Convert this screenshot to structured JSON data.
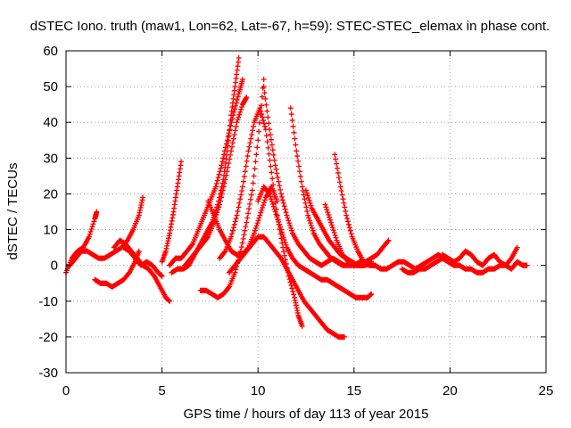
{
  "chart_data": {
    "type": "scatter",
    "title": "dSTEC Iono. truth (maw1, Lon=62, Lat=-67, h=59): STEC-STEC_elemax in phase cont.",
    "xlabel": "GPS time / hours of day 113 of year 2015",
    "ylabel": "dSTEC  / TECUs",
    "xlim": [
      0,
      25
    ],
    "ylim": [
      -30,
      60
    ],
    "xticks": [
      0,
      5,
      10,
      15,
      20,
      25
    ],
    "yticks": [
      -30,
      -20,
      -10,
      0,
      10,
      20,
      30,
      40,
      50,
      60
    ],
    "grid": true,
    "marker": "+",
    "colors": {
      "series": "#ff0000",
      "axes": "#000000",
      "grid": "#a0a0a0"
    },
    "series": [
      {
        "arcs": [
          {
            "x": [
              0.0,
              0.3,
              0.6,
              0.9,
              1.2,
              1.5,
              1.6
            ],
            "y": [
              -2,
              2,
              4,
              5,
              8,
              13,
              15
            ]
          },
          {
            "x": [
              0.2,
              0.5,
              0.8,
              1.1,
              1.4,
              1.7,
              2.0,
              2.3,
              2.6,
              2.9,
              3.2,
              3.5,
              3.8,
              4.0
            ],
            "y": [
              0,
              2,
              4,
              4,
              3,
              2,
              2,
              3,
              4,
              5,
              7,
              10,
              14,
              19
            ]
          },
          {
            "x": [
              1.5,
              1.8,
              2.1,
              2.4,
              2.7,
              3.0,
              3.3,
              3.6,
              3.8
            ],
            "y": [
              -4,
              -5,
              -5,
              -6,
              -5,
              -4,
              -2,
              1,
              4
            ]
          },
          {
            "x": [
              2.5,
              2.8,
              3.1,
              3.4,
              3.7,
              4.0,
              4.3,
              4.6,
              4.9,
              5.2,
              5.4
            ],
            "y": [
              5,
              7,
              6,
              4,
              2,
              0,
              -1,
              -3,
              -6,
              -9,
              -10
            ]
          },
          {
            "x": [
              3.0,
              3.3,
              3.6,
              3.9,
              4.2,
              4.5,
              4.8,
              5.0
            ],
            "y": [
              5,
              4,
              2,
              0,
              1,
              0,
              -2,
              -3
            ]
          },
          {
            "x": [
              5.0,
              5.2,
              5.4,
              5.6,
              5.8,
              6.0
            ],
            "y": [
              1,
              4,
              9,
              15,
              22,
              29
            ]
          },
          {
            "x": [
              5.4,
              5.7,
              6.0,
              6.3,
              6.6,
              6.9,
              7.2,
              7.5,
              7.8,
              8.1,
              8.4,
              8.7,
              9.0,
              9.2
            ],
            "y": [
              0,
              2,
              2,
              4,
              6,
              10,
              14,
              18,
              22,
              28,
              35,
              42,
              48,
              52
            ]
          },
          {
            "x": [
              5.5,
              5.8,
              6.1,
              6.4,
              6.7,
              7.0,
              7.3,
              7.6,
              7.9,
              8.2,
              8.4,
              8.6,
              8.8,
              9.0
            ],
            "y": [
              -2,
              -1,
              -1,
              0,
              3,
              6,
              9,
              12,
              17,
              24,
              32,
              42,
              50,
              58
            ]
          },
          {
            "x": [
              6.2,
              6.5,
              6.8,
              7.1,
              7.4,
              7.7,
              8.0,
              8.3,
              8.6,
              8.9,
              9.2,
              9.4
            ],
            "y": [
              0,
              2,
              4,
              6,
              8,
              12,
              17,
              24,
              32,
              40,
              45,
              47
            ]
          },
          {
            "x": [
              7.0,
              7.3,
              7.6,
              7.9,
              8.2,
              8.5,
              8.8,
              9.1,
              9.4,
              9.7,
              10.0,
              10.3
            ],
            "y": [
              -7,
              -7,
              -8,
              -9,
              -8,
              -6,
              -2,
              4,
              12,
              21,
              35,
              52
            ]
          },
          {
            "x": [
              7.4,
              7.7,
              8.0,
              8.3,
              8.6,
              8.9,
              9.2,
              9.5,
              9.8,
              10.1,
              10.4,
              10.7,
              11.0
            ],
            "y": [
              18,
              14,
              10,
              7,
              4,
              3,
              3,
              5,
              9,
              14,
              19,
              22,
              18
            ]
          },
          {
            "x": [
              8.0,
              8.3,
              8.6,
              8.9,
              9.2,
              9.5,
              9.8,
              10.1,
              10.4,
              10.7,
              11.0,
              11.3,
              11.6,
              11.9,
              12.1,
              12.3
            ],
            "y": [
              2,
              4,
              8,
              14,
              22,
              32,
              40,
              44,
              38,
              26,
              14,
              5,
              -3,
              -9,
              -14,
              -17
            ]
          },
          {
            "x": [
              8.5,
              8.8,
              9.1,
              9.4,
              9.7,
              10.0,
              10.3,
              10.6,
              10.9,
              11.2,
              11.5,
              11.8,
              12.1,
              12.4,
              12.7,
              13.0,
              13.3,
              13.6,
              13.9,
              14.2,
              14.5
            ],
            "y": [
              -2,
              0,
              2,
              4,
              6,
              8,
              8,
              6,
              4,
              2,
              -1,
              -4,
              -7,
              -10,
              -12,
              -14,
              -16,
              -18,
              -19,
              -20,
              -20
            ]
          },
          {
            "x": [
              10.0,
              10.3,
              10.6,
              10.9,
              11.2,
              11.5,
              11.8,
              12.1,
              12.4,
              12.7,
              13.0,
              13.3,
              13.6,
              13.9,
              14.2,
              14.5,
              14.8,
              15.1,
              15.4,
              15.7,
              15.9
            ],
            "y": [
              18,
              22,
              20,
              15,
              10,
              5,
              2,
              0,
              -1,
              -2,
              -3,
              -4,
              -4,
              -5,
              -6,
              -7,
              -8,
              -9,
              -9,
              -9,
              -8
            ]
          },
          {
            "x": [
              10.3,
              10.6,
              10.9,
              11.2,
              11.5,
              11.8,
              12.1,
              12.4,
              12.7,
              13.0,
              13.3,
              13.6,
              13.9,
              14.2,
              14.5
            ],
            "y": [
              50,
              38,
              28,
              20,
              14,
              9,
              6,
              4,
              2,
              1,
              0,
              1,
              2,
              1,
              0
            ]
          },
          {
            "x": [
              11.7,
              12.0,
              12.3,
              12.6,
              12.9,
              13.2,
              13.5,
              13.8,
              14.1,
              14.4,
              14.7,
              15.0,
              15.3
            ],
            "y": [
              44,
              32,
              22,
              14,
              9,
              6,
              4,
              2,
              1,
              0,
              0,
              0,
              0
            ]
          },
          {
            "x": [
              12.5,
              12.8,
              13.1,
              13.4,
              13.7,
              14.0,
              14.3,
              14.6,
              14.9,
              15.2,
              15.5
            ],
            "y": [
              21,
              16,
              13,
              10,
              7,
              5,
              3,
              2,
              1,
              0,
              0
            ]
          },
          {
            "x": [
              13.5,
              13.8,
              14.1,
              14.4,
              14.7,
              15.0,
              15.3,
              15.6,
              15.9
            ],
            "y": [
              17,
              12,
              7,
              3,
              1,
              0,
              0,
              0,
              1
            ]
          },
          {
            "x": [
              14.0,
              14.3,
              14.6,
              14.9,
              15.2,
              15.5,
              15.8,
              16.1
            ],
            "y": [
              31,
              22,
              14,
              8,
              4,
              1,
              0,
              0
            ]
          },
          {
            "x": [
              15.0,
              15.3,
              15.6,
              15.9,
              16.2,
              16.5,
              16.8
            ],
            "y": [
              0,
              1,
              1,
              2,
              3,
              5,
              7
            ]
          },
          {
            "x": [
              15.8,
              16.1,
              16.4,
              16.7,
              17.0,
              17.3,
              17.6,
              17.9,
              18.2,
              18.5,
              18.8,
              19.1,
              19.4,
              19.7,
              20.0
            ],
            "y": [
              0,
              0,
              -1,
              -1,
              0,
              1,
              1,
              0,
              -1,
              0,
              1,
              2,
              3,
              2,
              1
            ]
          },
          {
            "x": [
              17.5,
              17.8,
              18.1,
              18.4,
              18.7,
              19.0,
              19.3,
              19.6,
              19.9,
              20.2,
              20.5,
              20.8,
              21.1,
              21.4,
              21.7,
              22.0,
              22.3,
              22.6,
              22.9,
              23.2,
              23.5,
              23.8,
              24.0
            ],
            "y": [
              -1,
              -2,
              -2,
              -1,
              -1,
              0,
              1,
              2,
              1,
              0,
              0,
              -1,
              -1,
              -2,
              -2,
              -1,
              -1,
              0,
              0,
              -1,
              1,
              0,
              0
            ]
          },
          {
            "x": [
              19.6,
              19.9,
              20.2,
              20.5,
              20.8,
              21.1,
              21.4,
              21.7,
              22.0,
              22.3,
              22.6,
              22.9,
              23.2,
              23.5
            ],
            "y": [
              3,
              2,
              1,
              2,
              4,
              3,
              1,
              0,
              2,
              3,
              1,
              0,
              2,
              5
            ]
          }
        ]
      }
    ]
  }
}
